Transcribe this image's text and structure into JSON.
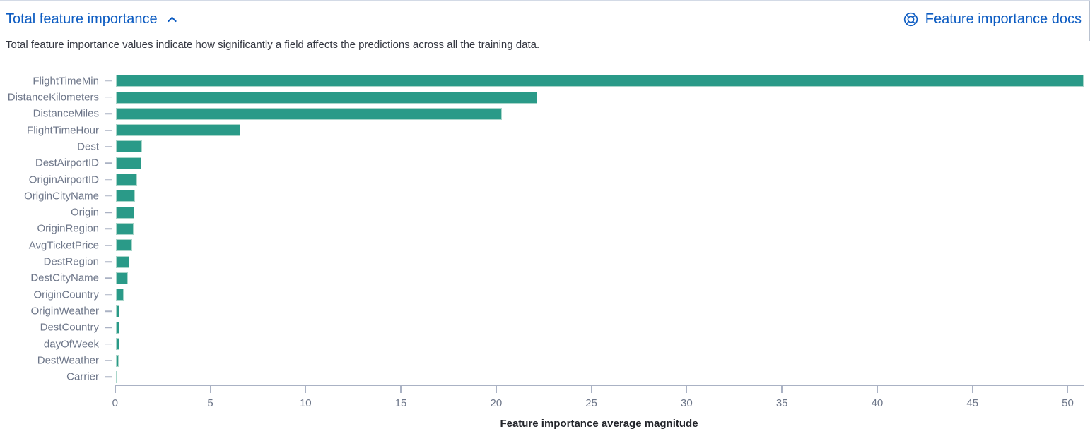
{
  "header": {
    "title": "Total feature importance",
    "docs_link_label": "Feature importance docs",
    "description": "Total feature importance values indicate how significantly a field affects the predictions across all the training data."
  },
  "colors": {
    "accent_blue": "#0d5cc2",
    "bar_fill": "#2a9a88",
    "bar_stroke": "#a9d6ca",
    "axis_line": "#aab2c4",
    "tick_label": "#6d7689",
    "description_text": "#343741",
    "axis_title_text": "#23252b"
  },
  "chart_data": {
    "type": "bar",
    "orientation": "horizontal",
    "title": "",
    "xlabel": "Feature importance average magnitude",
    "ylabel": "",
    "xlim": [
      0,
      50.78
    ],
    "xticks": [
      0,
      5,
      10,
      15,
      20,
      25,
      30,
      35,
      40,
      45,
      50
    ],
    "grid": false,
    "legend": "none",
    "categories": [
      "FlightTimeMin",
      "DistanceKilometers",
      "DistanceMiles",
      "FlightTimeHour",
      "Dest",
      "DestAirportID",
      "OriginAirportID",
      "OriginCityName",
      "Origin",
      "OriginRegion",
      "AvgTicketPrice",
      "DestRegion",
      "DestCityName",
      "OriginCountry",
      "OriginWeather",
      "DestCountry",
      "dayOfWeek",
      "DestWeather",
      "Carrier"
    ],
    "values": [
      50.78,
      22.12,
      20.25,
      6.53,
      1.37,
      1.32,
      1.1,
      0.99,
      0.96,
      0.93,
      0.84,
      0.7,
      0.63,
      0.41,
      0.18,
      0.16,
      0.16,
      0.15,
      0.06
    ]
  }
}
